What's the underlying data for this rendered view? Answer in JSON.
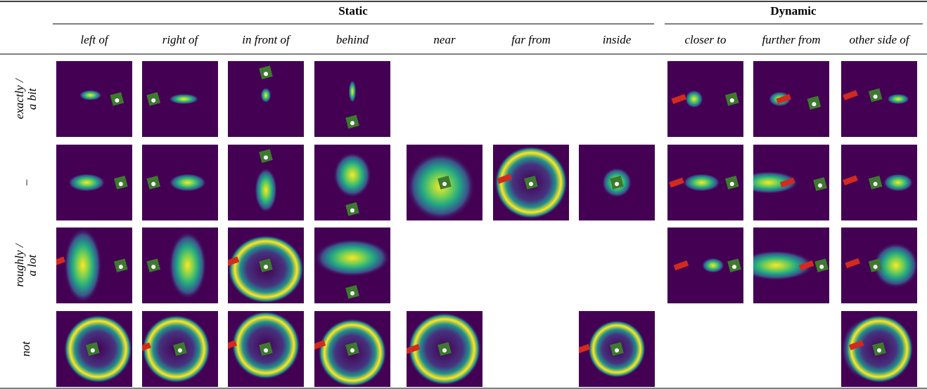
{
  "header": {
    "groups": [
      "Static",
      "Dynamic"
    ],
    "columns": [
      "left of",
      "right of",
      "in front of",
      "behind",
      "near",
      "far from",
      "inside",
      "closer to",
      "further from",
      "other side of"
    ]
  },
  "rows": [
    {
      "label": [
        "exactly /",
        "a bit"
      ]
    },
    {
      "label": [
        "–"
      ]
    },
    {
      "label": [
        "roughly /",
        "a lot"
      ]
    },
    {
      "label": [
        "not"
      ]
    }
  ]
}
